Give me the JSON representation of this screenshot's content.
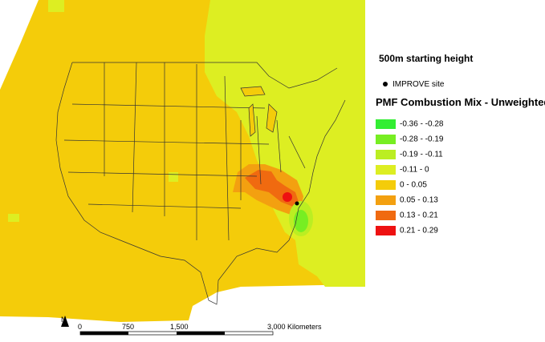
{
  "header": {
    "subtitle": "500m starting height"
  },
  "legend": {
    "site_label": "IMPROVE site",
    "title": "PMF Combustion Mix - Unweighted",
    "items": [
      {
        "label": "-0.36 - -0.28",
        "color": "#33ee33"
      },
      {
        "label": "-0.28 - -0.19",
        "color": "#77ee22"
      },
      {
        "label": "-0.19 - -0.11",
        "color": "#bbee22"
      },
      {
        "label": "-0.11 - 0",
        "color": "#ddee22"
      },
      {
        "label": "0 - 0.05",
        "color": "#f4cc0a"
      },
      {
        "label": "0.05 - 0.13",
        "color": "#f3a010"
      },
      {
        "label": "0.13 - 0.21",
        "color": "#f06a10"
      },
      {
        "label": "0.21 - 0.29",
        "color": "#ee1111"
      }
    ]
  },
  "map": {
    "scale_ticks": [
      "0",
      "750",
      "1,500",
      "3,000 Kilometers"
    ],
    "north_label": "N",
    "background_color": "#f4cc0a",
    "east_color": "#ddee22"
  }
}
